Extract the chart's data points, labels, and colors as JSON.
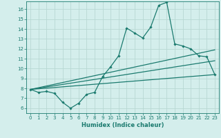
{
  "title": "",
  "xlabel": "Humidex (Indice chaleur)",
  "ylabel": "",
  "background_color": "#d4eeec",
  "grid_color": "#b8d8d4",
  "line_color": "#1a7a6e",
  "xlim": [
    -0.5,
    23.5
  ],
  "ylim": [
    5.5,
    16.8
  ],
  "xticks": [
    0,
    1,
    2,
    3,
    4,
    5,
    6,
    7,
    8,
    9,
    10,
    11,
    12,
    13,
    14,
    15,
    16,
    17,
    18,
    19,
    20,
    21,
    22,
    23
  ],
  "yticks": [
    6,
    7,
    8,
    9,
    10,
    11,
    12,
    13,
    14,
    15,
    16
  ],
  "line1_x": [
    0,
    1,
    2,
    3,
    4,
    5,
    6,
    7,
    8,
    9,
    10,
    11,
    12,
    13,
    14,
    15,
    16,
    17,
    18,
    19,
    20,
    21,
    22,
    23
  ],
  "line1_y": [
    7.9,
    7.6,
    7.7,
    7.5,
    6.6,
    6.0,
    6.5,
    7.4,
    7.6,
    9.2,
    10.2,
    11.3,
    14.1,
    13.6,
    13.1,
    14.2,
    16.4,
    16.7,
    12.5,
    12.3,
    12.0,
    11.3,
    11.2,
    9.4
  ],
  "line2_x": [
    0,
    23
  ],
  "line2_y": [
    7.9,
    11.9
  ],
  "line3_x": [
    0,
    23
  ],
  "line3_y": [
    7.9,
    10.8
  ],
  "line4_x": [
    0,
    23
  ],
  "line4_y": [
    7.9,
    9.4
  ],
  "marker": "D",
  "markersize": 1.8,
  "linewidth": 0.9,
  "tick_fontsize": 5.0,
  "xlabel_fontsize": 6.0
}
